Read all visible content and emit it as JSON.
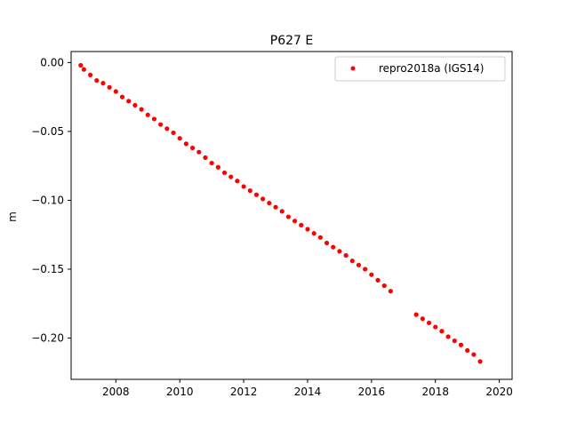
{
  "chart_data": {
    "type": "scatter",
    "title": "P627 E",
    "xlabel": "",
    "ylabel": "m",
    "xlim": [
      2006.6,
      2020.4
    ],
    "ylim": [
      -0.23,
      0.008
    ],
    "x_ticks": [
      2008,
      2010,
      2012,
      2014,
      2016,
      2018,
      2020
    ],
    "x_tick_labels": [
      "2008",
      "2010",
      "2012",
      "2014",
      "2016",
      "2018",
      "2020"
    ],
    "y_ticks": [
      0.0,
      -0.05,
      -0.1,
      -0.15,
      -0.2
    ],
    "y_tick_labels": [
      "0.00",
      "−0.05",
      "−0.10",
      "−0.15",
      "−0.20"
    ],
    "grid": false,
    "legend_position": "top-right",
    "series": [
      {
        "name": "repro2018a (IGS14)",
        "color": "#ff0000",
        "marker": "circle",
        "x": [
          2006.9,
          2007.0,
          2007.2,
          2007.4,
          2007.6,
          2007.8,
          2008.0,
          2008.2,
          2008.4,
          2008.6,
          2008.8,
          2009.0,
          2009.2,
          2009.4,
          2009.6,
          2009.8,
          2010.0,
          2010.2,
          2010.4,
          2010.6,
          2010.8,
          2011.0,
          2011.2,
          2011.4,
          2011.6,
          2011.8,
          2012.0,
          2012.2,
          2012.4,
          2012.6,
          2012.8,
          2013.0,
          2013.2,
          2013.4,
          2013.6,
          2013.8,
          2014.0,
          2014.2,
          2014.4,
          2014.6,
          2014.8,
          2015.0,
          2015.2,
          2015.4,
          2015.6,
          2015.8,
          2016.0,
          2016.2,
          2016.4,
          2016.6,
          2017.4,
          2017.6,
          2017.8,
          2018.0,
          2018.2,
          2018.4,
          2018.6,
          2018.8,
          2019.0,
          2019.2,
          2019.4
        ],
        "y": [
          -0.002,
          -0.005,
          -0.009,
          -0.013,
          -0.015,
          -0.018,
          -0.021,
          -0.025,
          -0.028,
          -0.031,
          -0.034,
          -0.038,
          -0.041,
          -0.045,
          -0.048,
          -0.051,
          -0.055,
          -0.059,
          -0.062,
          -0.065,
          -0.069,
          -0.073,
          -0.076,
          -0.08,
          -0.083,
          -0.086,
          -0.09,
          -0.093,
          -0.096,
          -0.099,
          -0.102,
          -0.105,
          -0.108,
          -0.112,
          -0.115,
          -0.118,
          -0.121,
          -0.124,
          -0.127,
          -0.131,
          -0.134,
          -0.137,
          -0.14,
          -0.144,
          -0.147,
          -0.15,
          -0.154,
          -0.158,
          -0.162,
          -0.166,
          -0.183,
          -0.186,
          -0.189,
          -0.192,
          -0.195,
          -0.199,
          -0.202,
          -0.205,
          -0.209,
          -0.212,
          -0.217
        ]
      }
    ]
  }
}
